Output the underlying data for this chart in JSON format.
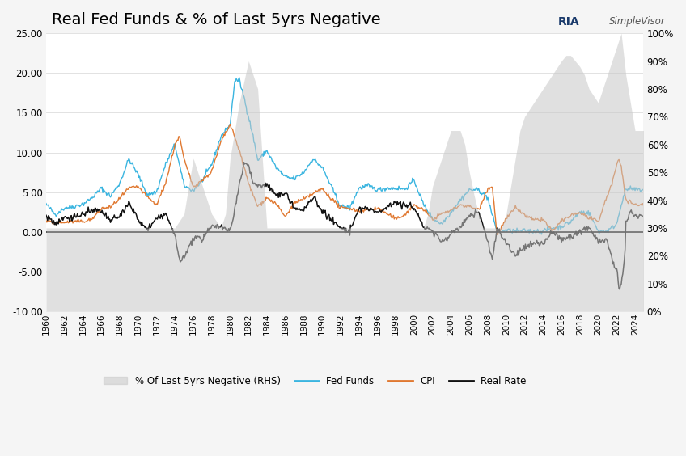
{
  "title": "Real Fed Funds & % of Last 5yrs Negative",
  "title_fontsize": 14,
  "bg_color": "#f5f5f5",
  "plot_bg_color": "#ffffff",
  "grid_color": "#dddddd",
  "left_ylim": [
    -10.0,
    25.0
  ],
  "right_ylim": [
    0,
    100
  ],
  "left_yticks": [
    -10.0,
    -5.0,
    0.0,
    5.0,
    10.0,
    15.0,
    20.0,
    25.0
  ],
  "right_yticks": [
    0,
    10,
    20,
    30,
    40,
    50,
    60,
    70,
    80,
    90,
    100
  ],
  "right_yticklabels": [
    "0%",
    "10%",
    "20%",
    "30%",
    "40%",
    "50%",
    "60%",
    "70%",
    "80%",
    "90%",
    "100%"
  ],
  "left_yticklabels": [
    "-10.00",
    "-5.00",
    "0.00",
    "5.00",
    "10.00",
    "15.00",
    "20.00",
    "25.00"
  ],
  "fed_funds_color": "#3ab5e0",
  "cpi_color": "#e07830",
  "real_rate_color": "#111111",
  "pct_negative_color": "#c8c8c8",
  "legend_labels": [
    "% Of Last 5yrs Negative (RHS)",
    "Fed Funds",
    "CPI",
    "Real Rate"
  ]
}
